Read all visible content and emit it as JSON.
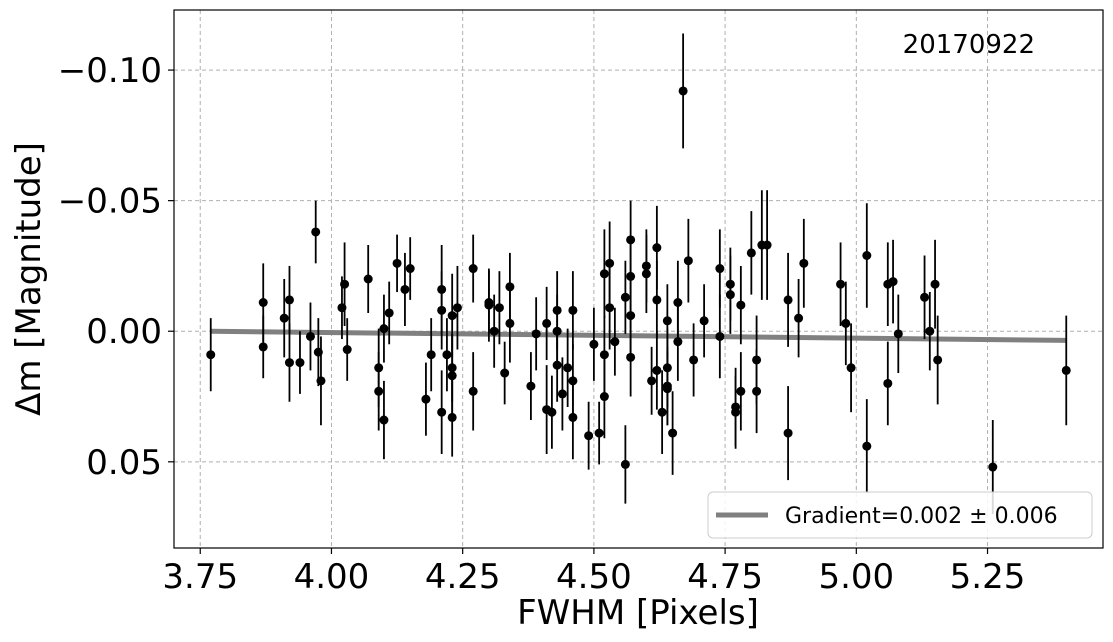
{
  "chart_data": {
    "type": "scatter",
    "annotation": "20170922",
    "xlabel": "FWHM [Pixels]",
    "ylabel": "Δm [Magnitude]",
    "xlim": [
      3.7,
      5.47
    ],
    "ylim": [
      0.083,
      -0.123
    ],
    "y_inverted": true,
    "grid": true,
    "x_ticks": [
      3.75,
      4.0,
      4.25,
      4.5,
      4.75,
      5.0,
      5.25
    ],
    "x_tick_labels": [
      "3.75",
      "4.00",
      "4.25",
      "4.50",
      "4.75",
      "5.00",
      "5.25"
    ],
    "y_ticks": [
      -0.1,
      -0.05,
      0.0,
      0.05
    ],
    "y_tick_labels": [
      "−0.10",
      "−0.05",
      "0.00",
      "0.05"
    ],
    "legend_position": "lower right",
    "fit_line": {
      "label": "Gradient=0.002 ± 0.006",
      "x": [
        3.77,
        5.4
      ],
      "y": [
        0.0,
        0.0035
      ],
      "color": "#808080"
    },
    "series": [
      {
        "marker_color": "#000000",
        "points": [
          {
            "x": 3.77,
            "y": 0.009,
            "err": 0.014
          },
          {
            "x": 3.87,
            "y": -0.011,
            "err": 0.015
          },
          {
            "x": 3.87,
            "y": 0.006,
            "err": 0.012
          },
          {
            "x": 3.91,
            "y": -0.005,
            "err": 0.015
          },
          {
            "x": 3.92,
            "y": -0.012,
            "err": 0.013
          },
          {
            "x": 3.92,
            "y": 0.012,
            "err": 0.015
          },
          {
            "x": 3.94,
            "y": 0.012,
            "err": 0.012
          },
          {
            "x": 3.96,
            "y": 0.002,
            "err": 0.013
          },
          {
            "x": 3.97,
            "y": -0.038,
            "err": 0.012
          },
          {
            "x": 3.975,
            "y": 0.008,
            "err": 0.013
          },
          {
            "x": 3.98,
            "y": 0.019,
            "err": 0.017
          },
          {
            "x": 4.02,
            "y": -0.009,
            "err": 0.012
          },
          {
            "x": 4.025,
            "y": -0.018,
            "err": 0.016
          },
          {
            "x": 4.03,
            "y": 0.007,
            "err": 0.012
          },
          {
            "x": 4.07,
            "y": -0.02,
            "err": 0.013
          },
          {
            "x": 4.09,
            "y": 0.014,
            "err": 0.015
          },
          {
            "x": 4.09,
            "y": 0.023,
            "err": 0.015
          },
          {
            "x": 4.1,
            "y": -0.001,
            "err": 0.013
          },
          {
            "x": 4.1,
            "y": 0.034,
            "err": 0.015
          },
          {
            "x": 4.11,
            "y": -0.007,
            "err": 0.012
          },
          {
            "x": 4.125,
            "y": -0.026,
            "err": 0.011
          },
          {
            "x": 4.14,
            "y": -0.016,
            "err": 0.014
          },
          {
            "x": 4.15,
            "y": -0.024,
            "err": 0.012
          },
          {
            "x": 4.18,
            "y": 0.026,
            "err": 0.014
          },
          {
            "x": 4.19,
            "y": 0.009,
            "err": 0.014
          },
          {
            "x": 4.21,
            "y": -0.016,
            "err": 0.017
          },
          {
            "x": 4.21,
            "y": -0.008,
            "err": 0.015
          },
          {
            "x": 4.21,
            "y": 0.031,
            "err": 0.016
          },
          {
            "x": 4.22,
            "y": 0.009,
            "err": 0.014
          },
          {
            "x": 4.23,
            "y": -0.006,
            "err": 0.016
          },
          {
            "x": 4.23,
            "y": 0.014,
            "err": 0.013
          },
          {
            "x": 4.23,
            "y": 0.017,
            "err": 0.016
          },
          {
            "x": 4.23,
            "y": 0.033,
            "err": 0.015
          },
          {
            "x": 4.24,
            "y": -0.009,
            "err": 0.016
          },
          {
            "x": 4.27,
            "y": -0.024,
            "err": 0.013
          },
          {
            "x": 4.27,
            "y": 0.023,
            "err": 0.015
          },
          {
            "x": 4.3,
            "y": -0.011,
            "err": 0.012
          },
          {
            "x": 4.3,
            "y": -0.01,
            "err": 0.014
          },
          {
            "x": 4.31,
            "y": 0.0,
            "err": 0.014
          },
          {
            "x": 4.32,
            "y": -0.009,
            "err": 0.014
          },
          {
            "x": 4.33,
            "y": 0.016,
            "err": 0.012
          },
          {
            "x": 4.34,
            "y": -0.017,
            "err": 0.013
          },
          {
            "x": 4.34,
            "y": -0.003,
            "err": 0.015
          },
          {
            "x": 4.38,
            "y": 0.021,
            "err": 0.013
          },
          {
            "x": 4.39,
            "y": 0.001,
            "err": 0.014
          },
          {
            "x": 4.41,
            "y": -0.003,
            "err": 0.014
          },
          {
            "x": 4.41,
            "y": 0.03,
            "err": 0.017
          },
          {
            "x": 4.42,
            "y": 0.031,
            "err": 0.014
          },
          {
            "x": 4.43,
            "y": -0.008,
            "err": 0.015
          },
          {
            "x": 4.43,
            "y": 0.0,
            "err": 0.014
          },
          {
            "x": 4.43,
            "y": 0.013,
            "err": 0.014
          },
          {
            "x": 4.44,
            "y": 0.024,
            "err": 0.014
          },
          {
            "x": 4.45,
            "y": 0.014,
            "err": 0.015
          },
          {
            "x": 4.46,
            "y": -0.008,
            "err": 0.015
          },
          {
            "x": 4.46,
            "y": 0.019,
            "err": 0.014
          },
          {
            "x": 4.46,
            "y": 0.033,
            "err": 0.016
          },
          {
            "x": 4.49,
            "y": 0.04,
            "err": 0.013
          },
          {
            "x": 4.5,
            "y": 0.005,
            "err": 0.014
          },
          {
            "x": 4.51,
            "y": 0.039,
            "err": 0.012
          },
          {
            "x": 4.52,
            "y": -0.022,
            "err": 0.017
          },
          {
            "x": 4.52,
            "y": 0.009,
            "err": 0.015
          },
          {
            "x": 4.52,
            "y": 0.025,
            "err": 0.016
          },
          {
            "x": 4.53,
            "y": -0.026,
            "err": 0.016
          },
          {
            "x": 4.53,
            "y": -0.009,
            "err": 0.016
          },
          {
            "x": 4.54,
            "y": 0.004,
            "err": 0.013
          },
          {
            "x": 4.56,
            "y": -0.013,
            "err": 0.014
          },
          {
            "x": 4.56,
            "y": 0.051,
            "err": 0.015
          },
          {
            "x": 4.57,
            "y": -0.035,
            "err": 0.015
          },
          {
            "x": 4.57,
            "y": -0.021,
            "err": 0.015
          },
          {
            "x": 4.57,
            "y": -0.006,
            "err": 0.015
          },
          {
            "x": 4.57,
            "y": 0.01,
            "err": 0.015
          },
          {
            "x": 4.6,
            "y": -0.025,
            "err": 0.014
          },
          {
            "x": 4.6,
            "y": -0.022,
            "err": 0.015
          },
          {
            "x": 4.61,
            "y": 0.019,
            "err": 0.013
          },
          {
            "x": 4.62,
            "y": -0.032,
            "err": 0.016
          },
          {
            "x": 4.62,
            "y": -0.012,
            "err": 0.015
          },
          {
            "x": 4.62,
            "y": 0.015,
            "err": 0.015
          },
          {
            "x": 4.63,
            "y": 0.031,
            "err": 0.016
          },
          {
            "x": 4.64,
            "y": -0.004,
            "err": 0.014
          },
          {
            "x": 4.64,
            "y": 0.014,
            "err": 0.015
          },
          {
            "x": 4.64,
            "y": 0.021,
            "err": 0.015
          },
          {
            "x": 4.64,
            "y": 0.022,
            "err": 0.014
          },
          {
            "x": 4.65,
            "y": 0.039,
            "err": 0.016
          },
          {
            "x": 4.66,
            "y": -0.011,
            "err": 0.016
          },
          {
            "x": 4.66,
            "y": 0.004,
            "err": 0.015
          },
          {
            "x": 4.67,
            "y": -0.092,
            "err": 0.022
          },
          {
            "x": 4.68,
            "y": -0.027,
            "err": 0.016
          },
          {
            "x": 4.69,
            "y": 0.011,
            "err": 0.014
          },
          {
            "x": 4.71,
            "y": -0.004,
            "err": 0.014
          },
          {
            "x": 4.74,
            "y": -0.024,
            "err": 0.015
          },
          {
            "x": 4.74,
            "y": 0.002,
            "err": 0.016
          },
          {
            "x": 4.76,
            "y": -0.018,
            "err": 0.014
          },
          {
            "x": 4.76,
            "y": -0.014,
            "err": 0.015
          },
          {
            "x": 4.77,
            "y": 0.029,
            "err": 0.015
          },
          {
            "x": 4.77,
            "y": 0.031,
            "err": 0.014
          },
          {
            "x": 4.78,
            "y": -0.01,
            "err": 0.015
          },
          {
            "x": 4.78,
            "y": 0.023,
            "err": 0.015
          },
          {
            "x": 4.8,
            "y": -0.03,
            "err": 0.016
          },
          {
            "x": 4.81,
            "y": 0.011,
            "err": 0.017
          },
          {
            "x": 4.81,
            "y": 0.023,
            "err": 0.016
          },
          {
            "x": 4.82,
            "y": -0.033,
            "err": 0.021
          },
          {
            "x": 4.83,
            "y": -0.033,
            "err": 0.021
          },
          {
            "x": 4.87,
            "y": -0.012,
            "err": 0.018
          },
          {
            "x": 4.87,
            "y": 0.039,
            "err": 0.018
          },
          {
            "x": 4.89,
            "y": -0.005,
            "err": 0.015
          },
          {
            "x": 4.9,
            "y": -0.026,
            "err": 0.017
          },
          {
            "x": 4.97,
            "y": -0.018,
            "err": 0.016
          },
          {
            "x": 4.98,
            "y": -0.003,
            "err": 0.016
          },
          {
            "x": 4.99,
            "y": 0.014,
            "err": 0.017
          },
          {
            "x": 5.02,
            "y": -0.029,
            "err": 0.02
          },
          {
            "x": 5.02,
            "y": 0.044,
            "err": 0.018
          },
          {
            "x": 5.06,
            "y": -0.018,
            "err": 0.016
          },
          {
            "x": 5.06,
            "y": 0.02,
            "err": 0.016
          },
          {
            "x": 5.07,
            "y": -0.019,
            "err": 0.016
          },
          {
            "x": 5.08,
            "y": 0.001,
            "err": 0.015
          },
          {
            "x": 5.13,
            "y": -0.013,
            "err": 0.016
          },
          {
            "x": 5.14,
            "y": 0.0,
            "err": 0.015
          },
          {
            "x": 5.15,
            "y": -0.018,
            "err": 0.017
          },
          {
            "x": 5.155,
            "y": 0.011,
            "err": 0.017
          },
          {
            "x": 5.26,
            "y": 0.052,
            "err": 0.018
          },
          {
            "x": 5.4,
            "y": 0.015,
            "err": 0.021
          }
        ]
      }
    ]
  }
}
